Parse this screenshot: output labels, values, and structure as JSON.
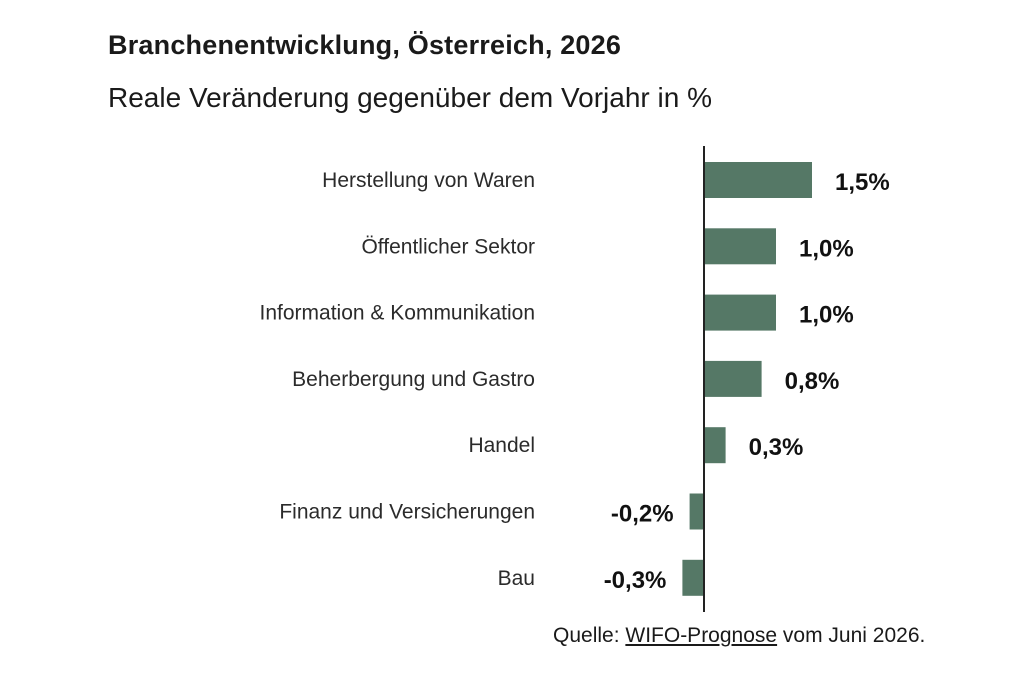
{
  "chart_data": {
    "type": "bar",
    "orientation": "horizontal",
    "title": "Branchenentwicklung, Österreich, 2026",
    "subtitle": "Reale Veränderung gegenüber dem Vorjahr in %",
    "categories": [
      "Herstellung von Waren",
      "Öffentlicher Sektor",
      "Information & Kommunikation",
      "Beherbergung und Gastro",
      "Handel",
      "Finanz und Versicherungen",
      "Bau"
    ],
    "values": [
      1.5,
      1.0,
      1.0,
      0.8,
      0.3,
      -0.2,
      -0.3
    ],
    "value_labels": [
      "1,5%",
      "1,0%",
      "1,0%",
      "0,8%",
      "0,3%",
      "-0,2%",
      "-0,3%"
    ],
    "xlim": [
      -0.3,
      1.5
    ],
    "grid": false,
    "legend": "none",
    "bar_color": "#557866",
    "axis_color": "#222222"
  },
  "source": {
    "prefix": "Quelle: ",
    "link_text": "WIFO-Prognose",
    "suffix": " vom Juni 2026."
  }
}
